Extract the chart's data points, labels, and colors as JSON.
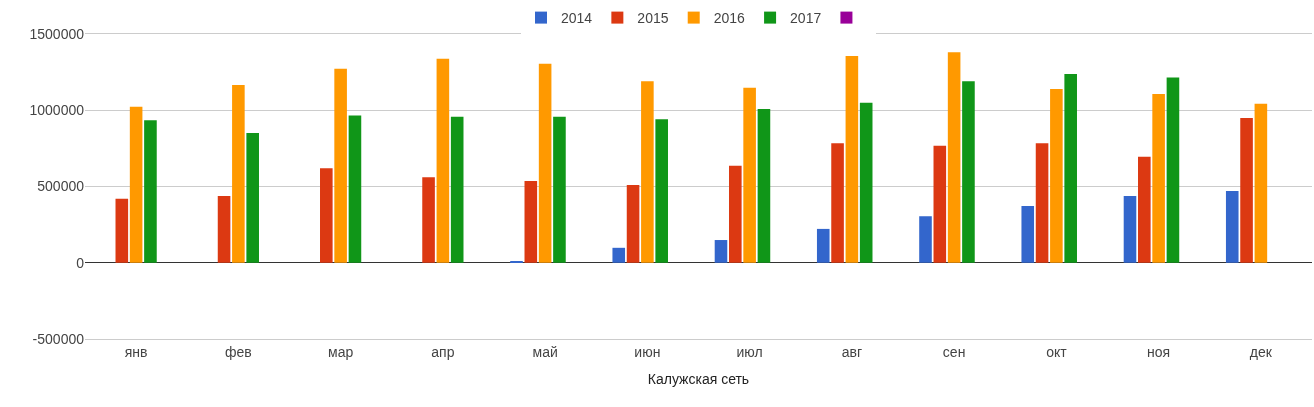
{
  "chart_data": {
    "type": "bar",
    "xlabel": "Калужская сеть",
    "categories": [
      "янв",
      "фев",
      "мар",
      "апр",
      "май",
      "июн",
      "июл",
      "авг",
      "сен",
      "окт",
      "ноя",
      "дек"
    ],
    "series": [
      {
        "name": "2014",
        "color": "#3366cc",
        "values": [
          null,
          null,
          null,
          null,
          8000,
          98000,
          149000,
          222000,
          305000,
          372000,
          437000,
          471000
        ]
      },
      {
        "name": "2015",
        "color": "#dc3912",
        "values": [
          420000,
          437000,
          619000,
          561000,
          536000,
          510000,
          636000,
          784000,
          768000,
          784000,
          695000,
          950000
        ]
      },
      {
        "name": "2016",
        "color": "#ff9900",
        "values": [
          1023000,
          1165000,
          1272000,
          1337000,
          1305000,
          1190000,
          1148000,
          1356000,
          1381000,
          1140000,
          1107000,
          1042000
        ]
      },
      {
        "name": "2017",
        "color": "#109618",
        "values": [
          935000,
          851000,
          966000,
          958000,
          958000,
          941000,
          1008000,
          1050000,
          1190000,
          1238000,
          1215000,
          null
        ]
      },
      {
        "color": "#990099",
        "values": [
          null,
          null,
          null,
          null,
          null,
          null,
          null,
          null,
          null,
          null,
          null,
          null
        ]
      }
    ],
    "ylim": [
      -500000,
      1500000
    ],
    "yticks": [
      -500000,
      0,
      500000,
      1000000,
      1500000
    ],
    "grid": "y",
    "legend": "top"
  }
}
